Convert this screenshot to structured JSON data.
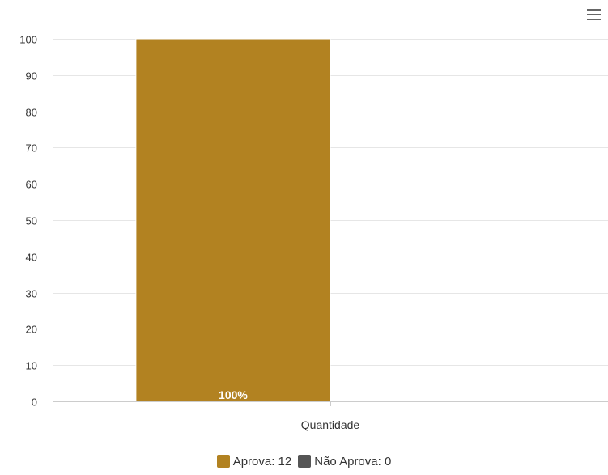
{
  "chart_data": {
    "type": "bar",
    "title": "",
    "categories": [
      "Quantidade"
    ],
    "series": [
      {
        "name": "Aprova",
        "values": [
          100
        ],
        "data_label": "100%",
        "color": "#b28221"
      },
      {
        "name": "Não Aprova",
        "values": [
          0
        ],
        "data_label": "",
        "color": "#555555"
      }
    ],
    "xlabel": "",
    "ylabel": "",
    "ylim": [
      0,
      100
    ],
    "yticks": [
      "0",
      "10",
      "20",
      "30",
      "40",
      "50",
      "60",
      "70",
      "80",
      "90",
      "100"
    ],
    "grid": true,
    "legend_position": "bottom-center"
  },
  "legend": {
    "items": [
      {
        "label": "Aprova: 12",
        "color": "#b28221"
      },
      {
        "label": "Não Aprova: 0",
        "color": "#555555"
      }
    ]
  },
  "toolbar": {
    "menu_icon": "hamburger-menu-icon"
  }
}
